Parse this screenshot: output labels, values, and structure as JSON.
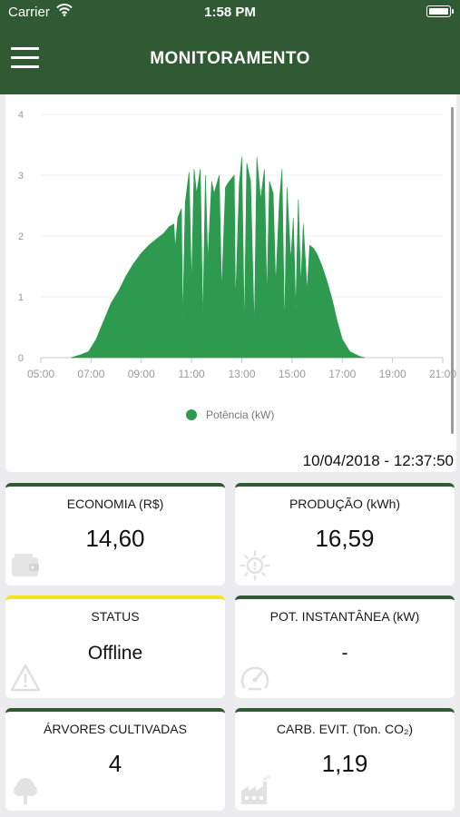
{
  "statusbar": {
    "carrier": "Carrier",
    "time": "1:58 PM"
  },
  "header": {
    "title": "MONITORAMENTO"
  },
  "chart_data": {
    "type": "area",
    "series": [
      {
        "name": "Potência (kW)",
        "color": "#2e9a4f"
      }
    ],
    "x_ticks": [
      "05:00",
      "07:00",
      "09:00",
      "11:00",
      "13:00",
      "15:00",
      "17:00",
      "19:00",
      "21:00"
    ],
    "y_ticks": [
      "0",
      "1",
      "2",
      "3",
      "4"
    ],
    "ylim": [
      0,
      4
    ],
    "xlim_hours": [
      5,
      21
    ],
    "grid": true,
    "legend_position": "bottom-center",
    "points": [
      [
        6.2,
        0
      ],
      [
        6.6,
        0.05
      ],
      [
        6.9,
        0.1
      ],
      [
        7.2,
        0.3
      ],
      [
        7.5,
        0.6
      ],
      [
        7.8,
        0.9
      ],
      [
        8.1,
        1.1
      ],
      [
        8.4,
        1.35
      ],
      [
        8.7,
        1.55
      ],
      [
        9.0,
        1.72
      ],
      [
        9.3,
        1.85
      ],
      [
        9.6,
        1.95
      ],
      [
        9.9,
        2.05
      ],
      [
        10.1,
        2.15
      ],
      [
        10.3,
        2.2
      ],
      [
        10.35,
        1.8
      ],
      [
        10.45,
        2.3
      ],
      [
        10.6,
        2.45
      ],
      [
        10.65,
        0.6
      ],
      [
        10.75,
        2.55
      ],
      [
        10.9,
        3.05
      ],
      [
        11.0,
        1.2
      ],
      [
        11.1,
        3.1
      ],
      [
        11.2,
        2.7
      ],
      [
        11.35,
        3.1
      ],
      [
        11.45,
        0.6
      ],
      [
        11.55,
        3.0
      ],
      [
        11.65,
        1.6
      ],
      [
        11.8,
        2.9
      ],
      [
        11.9,
        2.7
      ],
      [
        12.1,
        3.0
      ],
      [
        12.2,
        1.1
      ],
      [
        12.35,
        2.8
      ],
      [
        12.5,
        2.9
      ],
      [
        12.7,
        3.0
      ],
      [
        12.75,
        0.9
      ],
      [
        12.9,
        2.85
      ],
      [
        13.0,
        3.3
      ],
      [
        13.1,
        0.5
      ],
      [
        13.2,
        3.2
      ],
      [
        13.35,
        2.9
      ],
      [
        13.5,
        0.5
      ],
      [
        13.6,
        3.3
      ],
      [
        13.75,
        2.6
      ],
      [
        13.9,
        3.1
      ],
      [
        14.0,
        1.0
      ],
      [
        14.1,
        2.9
      ],
      [
        14.25,
        2.7
      ],
      [
        14.35,
        1.2
      ],
      [
        14.5,
        2.6
      ],
      [
        14.6,
        3.1
      ],
      [
        14.7,
        0.5
      ],
      [
        14.8,
        2.8
      ],
      [
        14.95,
        1.6
      ],
      [
        15.05,
        2.3
      ],
      [
        15.15,
        0.8
      ],
      [
        15.25,
        2.6
      ],
      [
        15.35,
        1.2
      ],
      [
        15.45,
        2.2
      ],
      [
        15.6,
        1.1
      ],
      [
        15.7,
        1.85
      ],
      [
        15.85,
        1.8
      ],
      [
        16.0,
        1.7
      ],
      [
        16.2,
        1.5
      ],
      [
        16.4,
        1.25
      ],
      [
        16.6,
        0.95
      ],
      [
        16.8,
        0.6
      ],
      [
        17.0,
        0.3
      ],
      [
        17.3,
        0.1
      ],
      [
        17.7,
        0.02
      ],
      [
        17.9,
        0
      ]
    ]
  },
  "last_update": "10/04/2018 - 12:37:50",
  "tiles": [
    {
      "label": "ECONOMIA (R$)",
      "value": "14,60",
      "icon": "wallet-icon"
    },
    {
      "label": "PRODUÇÃO (kWh)",
      "value": "16,59",
      "icon": "sun-icon"
    },
    {
      "label": "STATUS",
      "value": "Offline",
      "icon": "warning-icon",
      "accent": "#f2e31c"
    },
    {
      "label": "POT. INSTANTÂNEA (kW)",
      "value": "-",
      "icon": "gauge-icon"
    },
    {
      "label": "ÁRVORES CULTIVADAS",
      "value": "4",
      "icon": "tree-icon"
    },
    {
      "label": "CARB. EVIT. (Ton. CO₂)",
      "value": "1,19",
      "icon": "factory-icon"
    }
  ],
  "colors": {
    "brand": "#2f5a33",
    "chart_fill": "#2e9a4f",
    "status_warn": "#f2e31c"
  }
}
